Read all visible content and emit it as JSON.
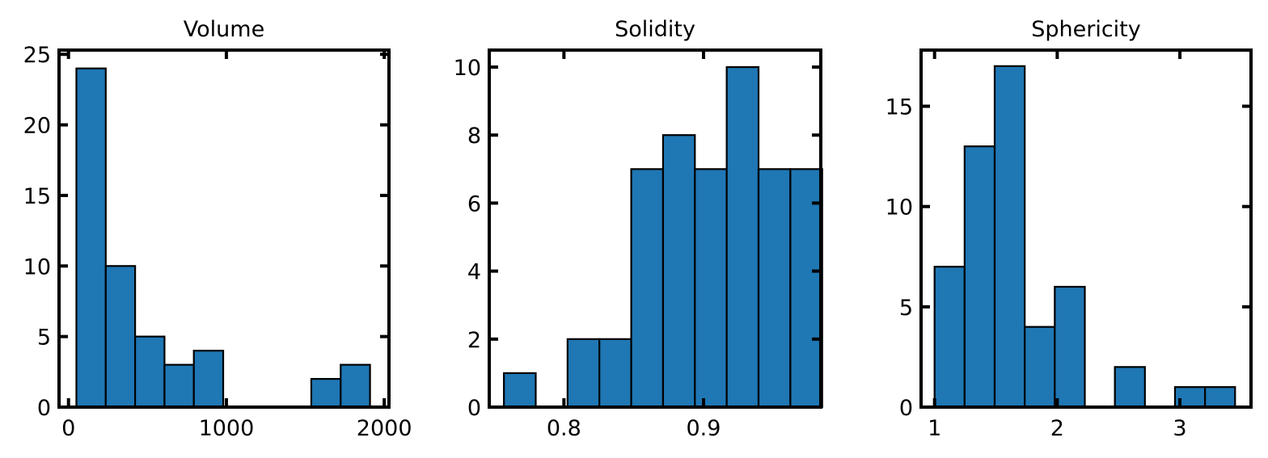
{
  "chart_data": [
    {
      "type": "bar",
      "title": "Volume",
      "xlim": [
        -60,
        2030
      ],
      "ylim": [
        0,
        25.3
      ],
      "xticks": [
        0,
        1000,
        2000
      ],
      "yticks": [
        0,
        5,
        10,
        15,
        20,
        25
      ],
      "bins": [
        {
          "x0": 50,
          "x1": 236,
          "count": 24
        },
        {
          "x0": 236,
          "x1": 422,
          "count": 10
        },
        {
          "x0": 422,
          "x1": 608,
          "count": 5
        },
        {
          "x0": 608,
          "x1": 794,
          "count": 3
        },
        {
          "x0": 794,
          "x1": 980,
          "count": 4
        },
        {
          "x0": 980,
          "x1": 1166,
          "count": 0
        },
        {
          "x0": 1166,
          "x1": 1352,
          "count": 0
        },
        {
          "x0": 1352,
          "x1": 1538,
          "count": 0
        },
        {
          "x0": 1538,
          "x1": 1724,
          "count": 2
        },
        {
          "x0": 1724,
          "x1": 1910,
          "count": 3
        }
      ],
      "color": "#1f77b4"
    },
    {
      "type": "bar",
      "title": "Solidity",
      "xlim": [
        0.7465,
        0.984
      ],
      "ylim": [
        0,
        10.5
      ],
      "xticks": [
        0.8,
        0.9
      ],
      "xtick_labels": [
        "0.8",
        "0.9"
      ],
      "yticks": [
        0,
        2,
        4,
        6,
        8,
        10
      ],
      "bins": [
        {
          "x0": 0.757,
          "x1": 0.7798,
          "count": 1
        },
        {
          "x0": 0.7798,
          "x1": 0.8026,
          "count": 0
        },
        {
          "x0": 0.8026,
          "x1": 0.8254,
          "count": 2
        },
        {
          "x0": 0.8254,
          "x1": 0.8482,
          "count": 2
        },
        {
          "x0": 0.8482,
          "x1": 0.871,
          "count": 7
        },
        {
          "x0": 0.871,
          "x1": 0.8938,
          "count": 8
        },
        {
          "x0": 0.8938,
          "x1": 0.9166,
          "count": 7
        },
        {
          "x0": 0.9166,
          "x1": 0.9394,
          "count": 10
        },
        {
          "x0": 0.9394,
          "x1": 0.9622,
          "count": 7
        },
        {
          "x0": 0.9622,
          "x1": 0.985,
          "count": 7
        }
      ],
      "color": "#1f77b4"
    },
    {
      "type": "bar",
      "title": "Sphericity",
      "xlim": [
        0.89,
        3.58
      ],
      "ylim": [
        0,
        17.8
      ],
      "xticks": [
        1,
        2,
        3
      ],
      "yticks": [
        0,
        5,
        10,
        15
      ],
      "bins": [
        {
          "x0": 1.0,
          "x1": 1.245,
          "count": 7
        },
        {
          "x0": 1.245,
          "x1": 1.49,
          "count": 13
        },
        {
          "x0": 1.49,
          "x1": 1.735,
          "count": 17
        },
        {
          "x0": 1.735,
          "x1": 1.98,
          "count": 4
        },
        {
          "x0": 1.98,
          "x1": 2.225,
          "count": 6
        },
        {
          "x0": 2.225,
          "x1": 2.47,
          "count": 0
        },
        {
          "x0": 2.47,
          "x1": 2.715,
          "count": 2
        },
        {
          "x0": 2.715,
          "x1": 2.96,
          "count": 0
        },
        {
          "x0": 2.96,
          "x1": 3.205,
          "count": 1
        },
        {
          "x0": 3.205,
          "x1": 3.45,
          "count": 1
        }
      ],
      "color": "#1f77b4"
    }
  ]
}
